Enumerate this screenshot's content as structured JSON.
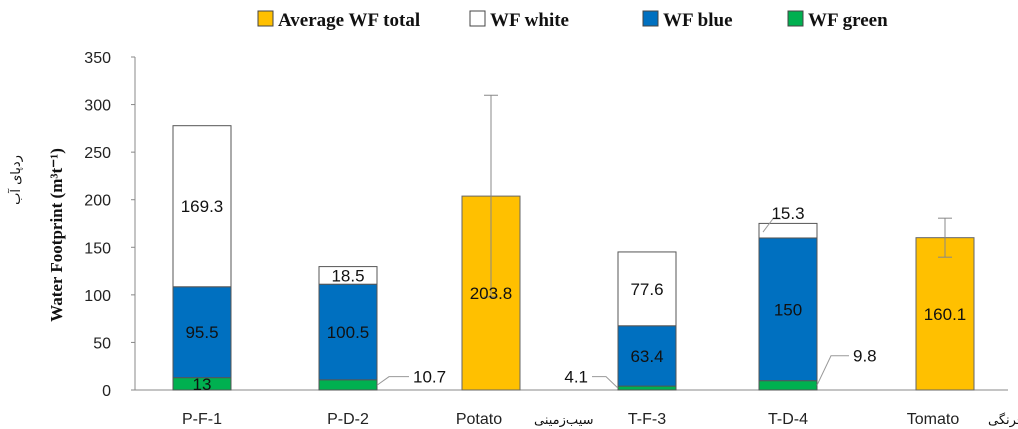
{
  "chart_data": {
    "type": "bar",
    "stacked": true,
    "categories": [
      "P-F-1",
      "P-D-2",
      "Potato",
      "T-F-3",
      "T-D-4",
      "Tomato"
    ],
    "category_persian": [
      "",
      "",
      "سیب‌زمینی",
      "",
      "",
      "گوجه‌فرنگی"
    ],
    "ylabel": "Water Footprint (m³t⁻¹)",
    "ylabel_persian": "ردپای آب",
    "ylim": [
      0,
      350
    ],
    "yticks": [
      0,
      50,
      100,
      150,
      200,
      250,
      300,
      350
    ],
    "grid": false,
    "legend_position": "top",
    "series": [
      {
        "name": "Average WF total",
        "color": "#FFC000",
        "values": [
          null,
          null,
          203.8,
          null,
          null,
          160.1
        ],
        "error": [
          null,
          null,
          106,
          null,
          null,
          20.5
        ]
      },
      {
        "name": "WF white",
        "color": "#FFFFFF",
        "values": [
          169.3,
          18.5,
          null,
          77.6,
          15.3,
          null
        ]
      },
      {
        "name": "WF blue",
        "color": "#0070C0",
        "values": [
          95.5,
          100.5,
          null,
          63.4,
          150,
          null
        ]
      },
      {
        "name": "WF green",
        "color": "#00B050",
        "values": [
          13,
          10.7,
          null,
          4.1,
          9.8,
          null
        ]
      }
    ],
    "data_labels": [
      {
        "text": "169.3"
      },
      {
        "text": "95.5"
      },
      {
        "text": "13"
      },
      {
        "text": "18.5"
      },
      {
        "text": "100.5"
      },
      {
        "text": "10.7"
      },
      {
        "text": "203.8"
      },
      {
        "text": "77.6"
      },
      {
        "text": "63.4"
      },
      {
        "text": "4.1"
      },
      {
        "text": "15.3"
      },
      {
        "text": "150"
      },
      {
        "text": "9.8"
      },
      {
        "text": "160.1"
      }
    ]
  }
}
